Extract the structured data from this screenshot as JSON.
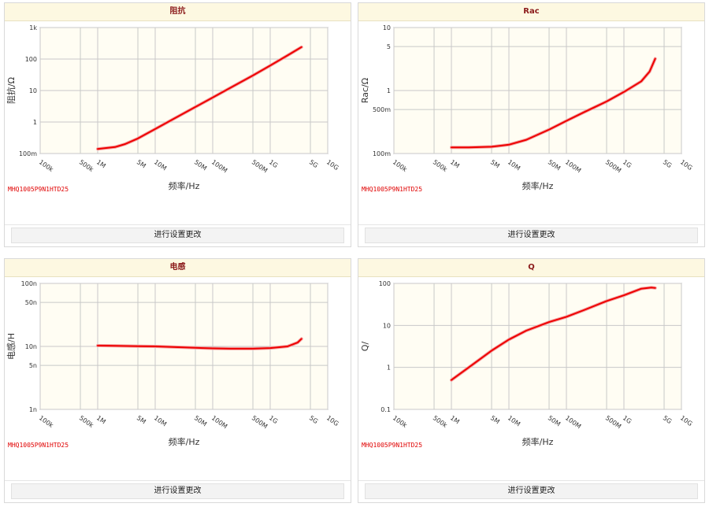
{
  "panels": [
    {
      "title": "阻抗",
      "xlabel": "频率/Hz",
      "ylabel": "阻抗/Ω",
      "part": "MHQ1005P9N1HTD25",
      "button": "进行设置更改"
    },
    {
      "title": "Rac",
      "xlabel": "频率/Hz",
      "ylabel": "Rac/Ω",
      "part": "MHQ1005P9N1HTD25",
      "button": "进行设置更改"
    },
    {
      "title": "电感",
      "xlabel": "频率/Hz",
      "ylabel": "电感/H",
      "part": "MHQ1005P9N1HTD25",
      "button": "进行设置更改"
    },
    {
      "title": "Q",
      "xlabel": "频率/Hz",
      "ylabel": "Q/",
      "part": "MHQ1005P9N1HTD25",
      "button": "进行设置更改"
    }
  ],
  "chart_data": [
    {
      "type": "line",
      "title": "阻抗",
      "xlabel": "频率/Hz",
      "ylabel": "阻抗/Ω",
      "xscale": "log",
      "yscale": "log",
      "xlim": [
        100000,
        10000000000
      ],
      "ylim": [
        0.1,
        1000
      ],
      "x_ticks": [
        {
          "v": 100000,
          "label": "100k"
        },
        {
          "v": 500000,
          "label": "500k"
        },
        {
          "v": 1000000,
          "label": "1M"
        },
        {
          "v": 5000000,
          "label": "5M"
        },
        {
          "v": 10000000,
          "label": "10M"
        },
        {
          "v": 50000000,
          "label": "50M"
        },
        {
          "v": 100000000,
          "label": "100M"
        },
        {
          "v": 500000000,
          "label": "500M"
        },
        {
          "v": 1000000000,
          "label": "1G"
        },
        {
          "v": 5000000000,
          "label": "5G"
        },
        {
          "v": 10000000000,
          "label": "10G"
        }
      ],
      "y_ticks": [
        {
          "v": 0.1,
          "label": "100m"
        },
        {
          "v": 1,
          "label": "1"
        },
        {
          "v": 10,
          "label": "10"
        },
        {
          "v": 100,
          "label": "100"
        },
        {
          "v": 1000,
          "label": "1k"
        }
      ],
      "grid": true,
      "series_color": "#ee0000",
      "x": [
        1000000,
        2000000,
        3000000,
        5000000,
        10000000,
        20000000,
        50000000,
        100000000,
        200000000,
        500000000,
        1000000000,
        2000000000,
        3500000000
      ],
      "y": [
        0.14,
        0.16,
        0.2,
        0.3,
        0.6,
        1.2,
        3.0,
        6.0,
        12,
        30,
        62,
        130,
        240
      ]
    },
    {
      "type": "line",
      "title": "Rac",
      "xlabel": "频率/Hz",
      "ylabel": "Rac/Ω",
      "xscale": "log",
      "yscale": "log",
      "xlim": [
        100000,
        10000000000
      ],
      "ylim": [
        0.1,
        10
      ],
      "x_ticks": [
        {
          "v": 100000,
          "label": "100k"
        },
        {
          "v": 500000,
          "label": "500k"
        },
        {
          "v": 1000000,
          "label": "1M"
        },
        {
          "v": 5000000,
          "label": "5M"
        },
        {
          "v": 10000000,
          "label": "10M"
        },
        {
          "v": 50000000,
          "label": "50M"
        },
        {
          "v": 100000000,
          "label": "100M"
        },
        {
          "v": 500000000,
          "label": "500M"
        },
        {
          "v": 1000000000,
          "label": "1G"
        },
        {
          "v": 5000000000,
          "label": "5G"
        },
        {
          "v": 10000000000,
          "label": "10G"
        }
      ],
      "y_ticks": [
        {
          "v": 0.1,
          "label": "100m"
        },
        {
          "v": 0.5,
          "label": "500m"
        },
        {
          "v": 1,
          "label": "1"
        },
        {
          "v": 5,
          "label": "5"
        },
        {
          "v": 10,
          "label": "10"
        }
      ],
      "grid": true,
      "series_color": "#ee0000",
      "x": [
        1000000,
        2000000,
        5000000,
        10000000,
        20000000,
        50000000,
        100000000,
        200000000,
        500000000,
        1000000000,
        2000000000,
        2800000000,
        3500000000
      ],
      "y": [
        0.125,
        0.125,
        0.128,
        0.138,
        0.165,
        0.24,
        0.33,
        0.45,
        0.67,
        0.95,
        1.4,
        2.0,
        3.2
      ]
    },
    {
      "type": "line",
      "title": "电感",
      "xlabel": "频率/Hz",
      "ylabel": "电感/H",
      "xscale": "log",
      "yscale": "log",
      "xlim": [
        100000,
        10000000000
      ],
      "ylim": [
        1e-09,
        1e-07
      ],
      "x_ticks": [
        {
          "v": 100000,
          "label": "100k"
        },
        {
          "v": 500000,
          "label": "500k"
        },
        {
          "v": 1000000,
          "label": "1M"
        },
        {
          "v": 5000000,
          "label": "5M"
        },
        {
          "v": 10000000,
          "label": "10M"
        },
        {
          "v": 50000000,
          "label": "50M"
        },
        {
          "v": 100000000,
          "label": "100M"
        },
        {
          "v": 500000000,
          "label": "500M"
        },
        {
          "v": 1000000000,
          "label": "1G"
        },
        {
          "v": 5000000000,
          "label": "5G"
        },
        {
          "v": 10000000000,
          "label": "10G"
        }
      ],
      "y_ticks": [
        {
          "v": 1e-09,
          "label": "1n"
        },
        {
          "v": 5e-09,
          "label": "5n"
        },
        {
          "v": 1e-08,
          "label": "10n"
        },
        {
          "v": 5e-08,
          "label": "50n"
        },
        {
          "v": 1e-07,
          "label": "100n"
        }
      ],
      "grid": true,
      "series_color": "#ee0000",
      "x": [
        1000000,
        2000000,
        5000000,
        10000000,
        20000000,
        50000000,
        100000000,
        200000000,
        500000000,
        1000000000,
        2000000000,
        3000000000,
        3500000000
      ],
      "y": [
        1.03e-08,
        1.02e-08,
        1.01e-08,
        1e-08,
        9.8e-09,
        9.5e-09,
        9.3e-09,
        9.2e-09,
        9.2e-09,
        9.4e-09,
        1e-08,
        1.15e-08,
        1.32e-08
      ]
    },
    {
      "type": "line",
      "title": "Q",
      "xlabel": "频率/Hz",
      "ylabel": "Q/",
      "xscale": "log",
      "yscale": "log",
      "xlim": [
        100000,
        10000000000
      ],
      "ylim": [
        0.1,
        100
      ],
      "x_ticks": [
        {
          "v": 100000,
          "label": "100k"
        },
        {
          "v": 500000,
          "label": "500k"
        },
        {
          "v": 1000000,
          "label": "1M"
        },
        {
          "v": 5000000,
          "label": "5M"
        },
        {
          "v": 10000000,
          "label": "10M"
        },
        {
          "v": 50000000,
          "label": "50M"
        },
        {
          "v": 100000000,
          "label": "100M"
        },
        {
          "v": 500000000,
          "label": "500M"
        },
        {
          "v": 1000000000,
          "label": "1G"
        },
        {
          "v": 5000000000,
          "label": "5G"
        },
        {
          "v": 10000000000,
          "label": "10G"
        }
      ],
      "y_ticks": [
        {
          "v": 0.1,
          "label": "0.1"
        },
        {
          "v": 1,
          "label": "1"
        },
        {
          "v": 10,
          "label": "10"
        },
        {
          "v": 100,
          "label": "100"
        }
      ],
      "grid": true,
      "series_color": "#ee0000",
      "x": [
        1000000,
        2000000,
        5000000,
        10000000,
        20000000,
        50000000,
        100000000,
        200000000,
        500000000,
        1000000000,
        2000000000,
        3000000000,
        3500000000
      ],
      "y": [
        0.5,
        1.0,
        2.5,
        4.6,
        7.5,
        12,
        16,
        23,
        38,
        52,
        75,
        80,
        78
      ]
    }
  ]
}
